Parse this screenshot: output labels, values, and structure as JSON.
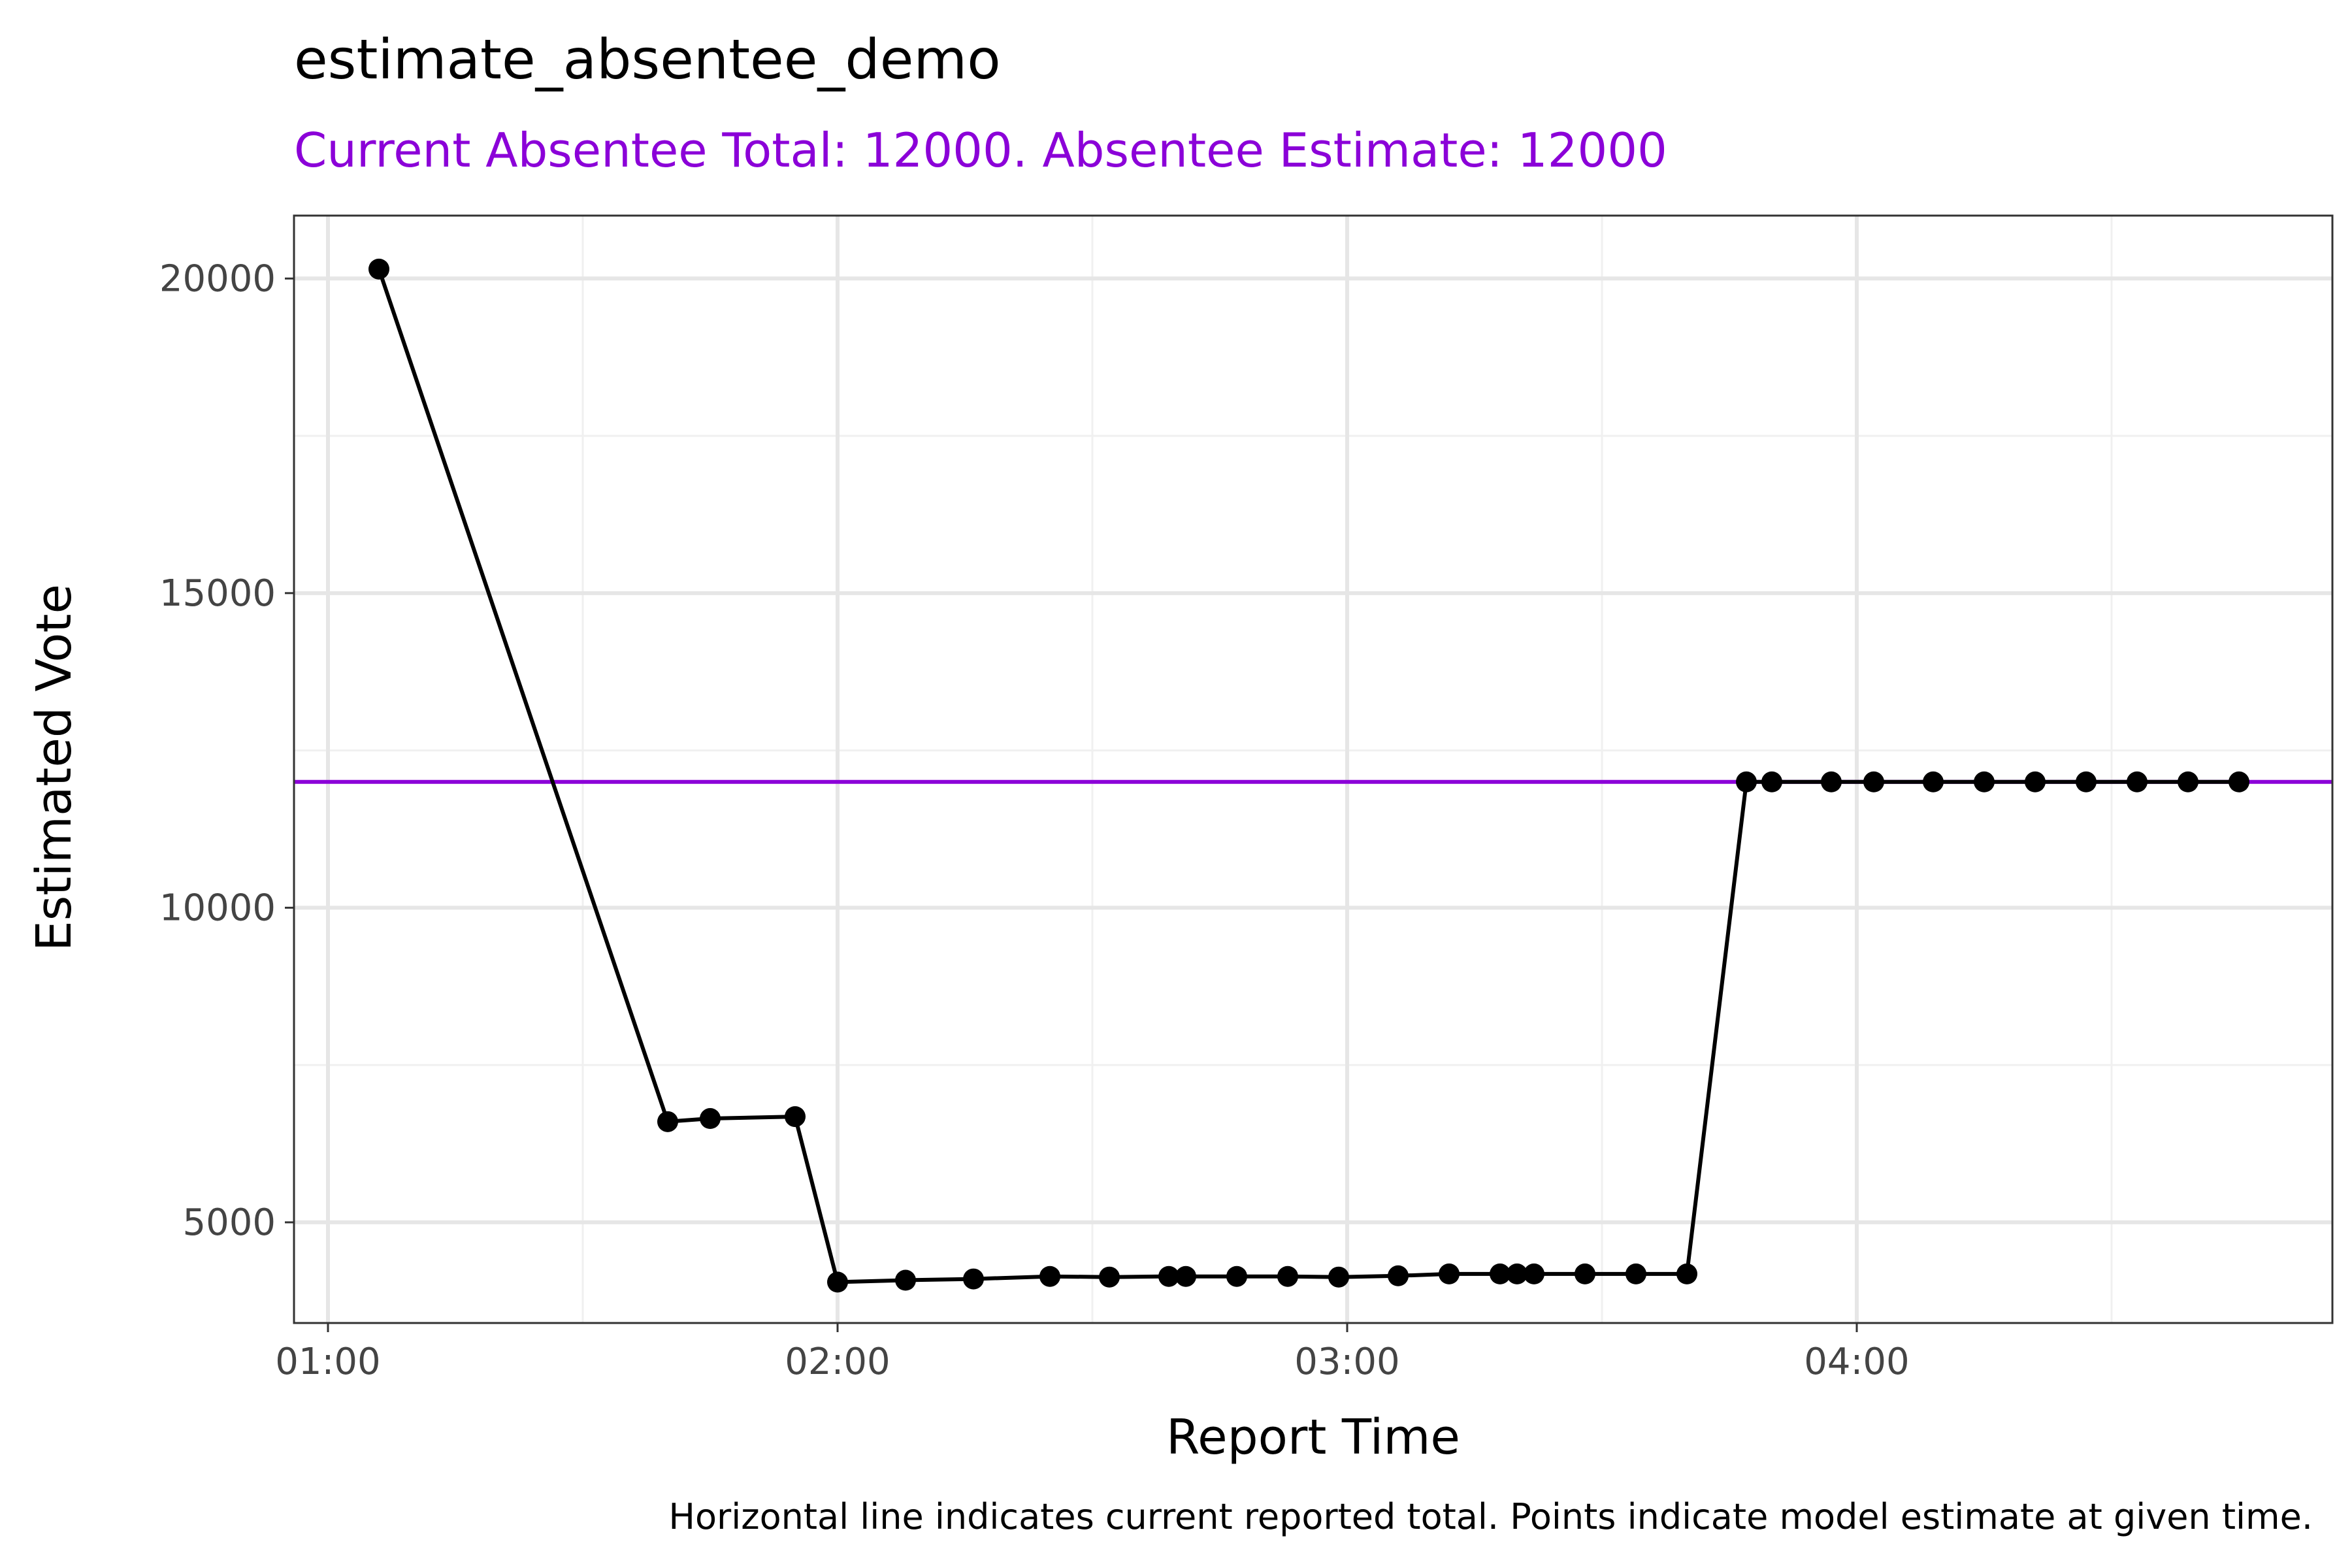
{
  "chart_data": {
    "type": "line",
    "title": "estimate_absentee_demo",
    "subtitle": "Current Absentee Total: 12000. Absentee Estimate: 12000",
    "xlabel": "Report Time",
    "ylabel": "Estimated Vote",
    "caption": "Horizontal line indicates current reported total. Points indicate model estimate at given time.",
    "x_ticks": [
      "01:00",
      "02:00",
      "03:00",
      "04:00"
    ],
    "y_ticks": [
      5000,
      10000,
      15000,
      20000
    ],
    "xlim": [
      "00:56",
      "04:56"
    ],
    "ylim": [
      3400,
      21000
    ],
    "grid": true,
    "reference_line": {
      "value": 12000
    },
    "series": [
      {
        "x": [
          "01:06",
          "01:40",
          "01:45",
          "01:55",
          "02:00",
          "02:08",
          "02:16",
          "02:25",
          "02:32",
          "02:39",
          "02:41",
          "02:47",
          "02:53",
          "02:59",
          "03:06",
          "03:12",
          "03:18",
          "03:20",
          "03:22",
          "03:28",
          "03:34",
          "03:40",
          "03:47",
          "03:50",
          "03:57",
          "04:02",
          "04:09",
          "04:15",
          "04:21",
          "04:27",
          "04:33",
          "04:39",
          "04:45"
        ],
        "values": [
          20150,
          6600,
          6650,
          6680,
          4050,
          4080,
          4100,
          4140,
          4130,
          4140,
          4140,
          4140,
          4140,
          4130,
          4150,
          4180,
          4180,
          4180,
          4180,
          4180,
          4180,
          4180,
          12000,
          12000,
          12000,
          12000,
          12000,
          12000,
          12000,
          12000,
          12000,
          12000,
          12000
        ]
      }
    ]
  },
  "colors": {
    "line": "#000000",
    "points": "#000000",
    "reference_line": "#8B00D8",
    "subtitle": "#8B00D8",
    "grid_major": "#e6e6e6",
    "grid_minor": "#f0f0f0",
    "panel_border": "#333333"
  }
}
